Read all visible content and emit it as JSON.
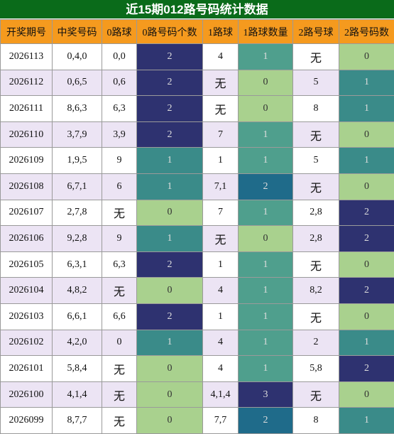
{
  "title": "近15期012路号码统计数据",
  "table": {
    "header": [
      "开奖期号",
      "中奖号码",
      "0路球",
      "0路号码个数",
      "1路球",
      "1路球数量",
      "2路号球",
      "2路号码数"
    ],
    "rows": [
      [
        "2026113",
        "0,4,0",
        "0,0",
        2,
        "4",
        1,
        "无",
        0
      ],
      [
        "2026112",
        "0,6,5",
        "0,6",
        2,
        "无",
        0,
        "5",
        1
      ],
      [
        "2026111",
        "8,6,3",
        "6,3",
        2,
        "无",
        0,
        "8",
        1
      ],
      [
        "2026110",
        "3,7,9",
        "3,9",
        2,
        "7",
        1,
        "无",
        0
      ],
      [
        "2026109",
        "1,9,5",
        "9",
        1,
        "1",
        1,
        "5",
        1
      ],
      [
        "2026108",
        "6,7,1",
        "6",
        1,
        "7,1",
        2,
        "无",
        0
      ],
      [
        "2026107",
        "2,7,8",
        "无",
        0,
        "7",
        1,
        "2,8",
        2
      ],
      [
        "2026106",
        "9,2,8",
        "9",
        1,
        "无",
        0,
        "2,8",
        2
      ],
      [
        "2026105",
        "6,3,1",
        "6,3",
        2,
        "1",
        1,
        "无",
        0
      ],
      [
        "2026104",
        "4,8,2",
        "无",
        0,
        "4",
        1,
        "8,2",
        2
      ],
      [
        "2026103",
        "6,6,1",
        "6,6",
        2,
        "1",
        1,
        "无",
        0
      ],
      [
        "2026102",
        "4,2,0",
        "0",
        1,
        "4",
        1,
        "2",
        1
      ],
      [
        "2026101",
        "5,8,4",
        "无",
        0,
        "4",
        1,
        "5,8",
        2
      ],
      [
        "2026100",
        "4,1,4",
        "无",
        0,
        "4,1,4",
        3,
        "无",
        0
      ],
      [
        "2026099",
        "8,7,7",
        "无",
        0,
        "7,7",
        2,
        "8",
        1
      ]
    ]
  },
  "count_colors": [
    "#a9d18e",
    "#3a8b89",
    "#2e3270",
    "#2e3270"
  ],
  "count_colors_1": [
    "#a9d18e",
    "#4f9f8d",
    "#1f6b8a",
    "#2e3270"
  ]
}
